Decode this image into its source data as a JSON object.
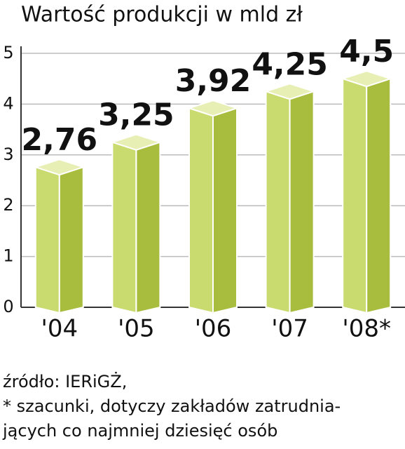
{
  "chart_data": {
    "type": "bar3d",
    "title": "Wartość produkcji w mld zł",
    "categories": [
      "'04",
      "'05",
      "'06",
      "'07",
      "'08*"
    ],
    "values": [
      2.76,
      3.25,
      3.92,
      4.25,
      4.5
    ],
    "value_labels": [
      "2,76",
      "3,25",
      "3,92",
      "4,25",
      "4,5"
    ],
    "colors": {
      "front": "#c9da6f",
      "side": "#a8bd3e",
      "top": "#e8efb4"
    },
    "ylim": [
      0,
      5
    ],
    "yticks": [
      0,
      1,
      2,
      3,
      4,
      5
    ],
    "grid": true,
    "notes": [
      "źródło: IERiGŻ,",
      "* szacunki, dotyczy zakładów zatrudnia-",
      "jących co najmniej dziesięć osób"
    ]
  }
}
